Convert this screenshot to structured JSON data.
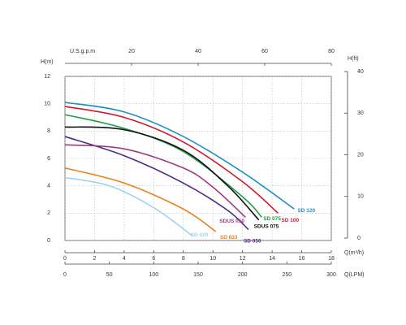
{
  "chart_data": {
    "type": "line",
    "ylabel": "H(m)",
    "y2label": "H(ft)",
    "xlabel": "Q(m³/h)",
    "x2label": "Q(LPM)",
    "x3label": "U.S.g.p.m",
    "xlim": [
      0,
      18
    ],
    "xticks": [
      0,
      2,
      4,
      6,
      8,
      10,
      12,
      14,
      16,
      18
    ],
    "x2lim": [
      0,
      300
    ],
    "x2ticks": [
      0,
      50,
      100,
      150,
      200,
      250,
      300
    ],
    "x3lim": [
      0,
      80
    ],
    "x3ticks": [
      20,
      40,
      60,
      80
    ],
    "ylim": [
      0,
      12
    ],
    "yticks": [
      0,
      2,
      4,
      6,
      8,
      10,
      12
    ],
    "y2lim": [
      0,
      40
    ],
    "y2ticks": [
      0,
      10,
      20,
      30,
      40
    ],
    "grid": true,
    "series": [
      {
        "name": "SD 120",
        "color": "#1f8fc8",
        "x": [
          0,
          4,
          8,
          12,
          15.5
        ],
        "values": [
          10.1,
          9.4,
          7.6,
          5.0,
          2.3
        ]
      },
      {
        "name": "SD 100",
        "color": "#d7152b",
        "x": [
          0,
          4,
          8,
          12,
          14.4
        ],
        "values": [
          9.8,
          9.0,
          7.2,
          4.3,
          2.0
        ]
      },
      {
        "name": "SD 075",
        "color": "#1e9e44",
        "x": [
          0,
          4,
          8,
          12,
          13.3
        ],
        "values": [
          9.2,
          8.2,
          6.5,
          3.2,
          1.7
        ]
      },
      {
        "name": "SDUS 075",
        "color": "#111111",
        "x": [
          0,
          4,
          8,
          11,
          13.1
        ],
        "values": [
          8.3,
          8.1,
          6.6,
          4.0,
          1.5
        ]
      },
      {
        "name": "SD 050",
        "color": "#4b2a8c",
        "x": [
          0,
          4,
          8,
          11,
          12.4
        ],
        "values": [
          7.6,
          6.2,
          4.2,
          2.2,
          0.8
        ]
      },
      {
        "name": "SDUS 050",
        "color": "#a0387e",
        "x": [
          0,
          4,
          8,
          10,
          12.2
        ],
        "values": [
          7.0,
          6.7,
          5.3,
          3.9,
          1.7
        ]
      },
      {
        "name": "SD 033",
        "color": "#e8801c",
        "x": [
          0,
          4,
          8,
          10.2
        ],
        "values": [
          5.3,
          4.2,
          2.3,
          0.65
        ]
      },
      {
        "name": "SD 020",
        "color": "#9fd3ee",
        "x": [
          0,
          3,
          6,
          8.6
        ],
        "values": [
          4.6,
          4.0,
          2.4,
          0.35
        ]
      }
    ]
  }
}
